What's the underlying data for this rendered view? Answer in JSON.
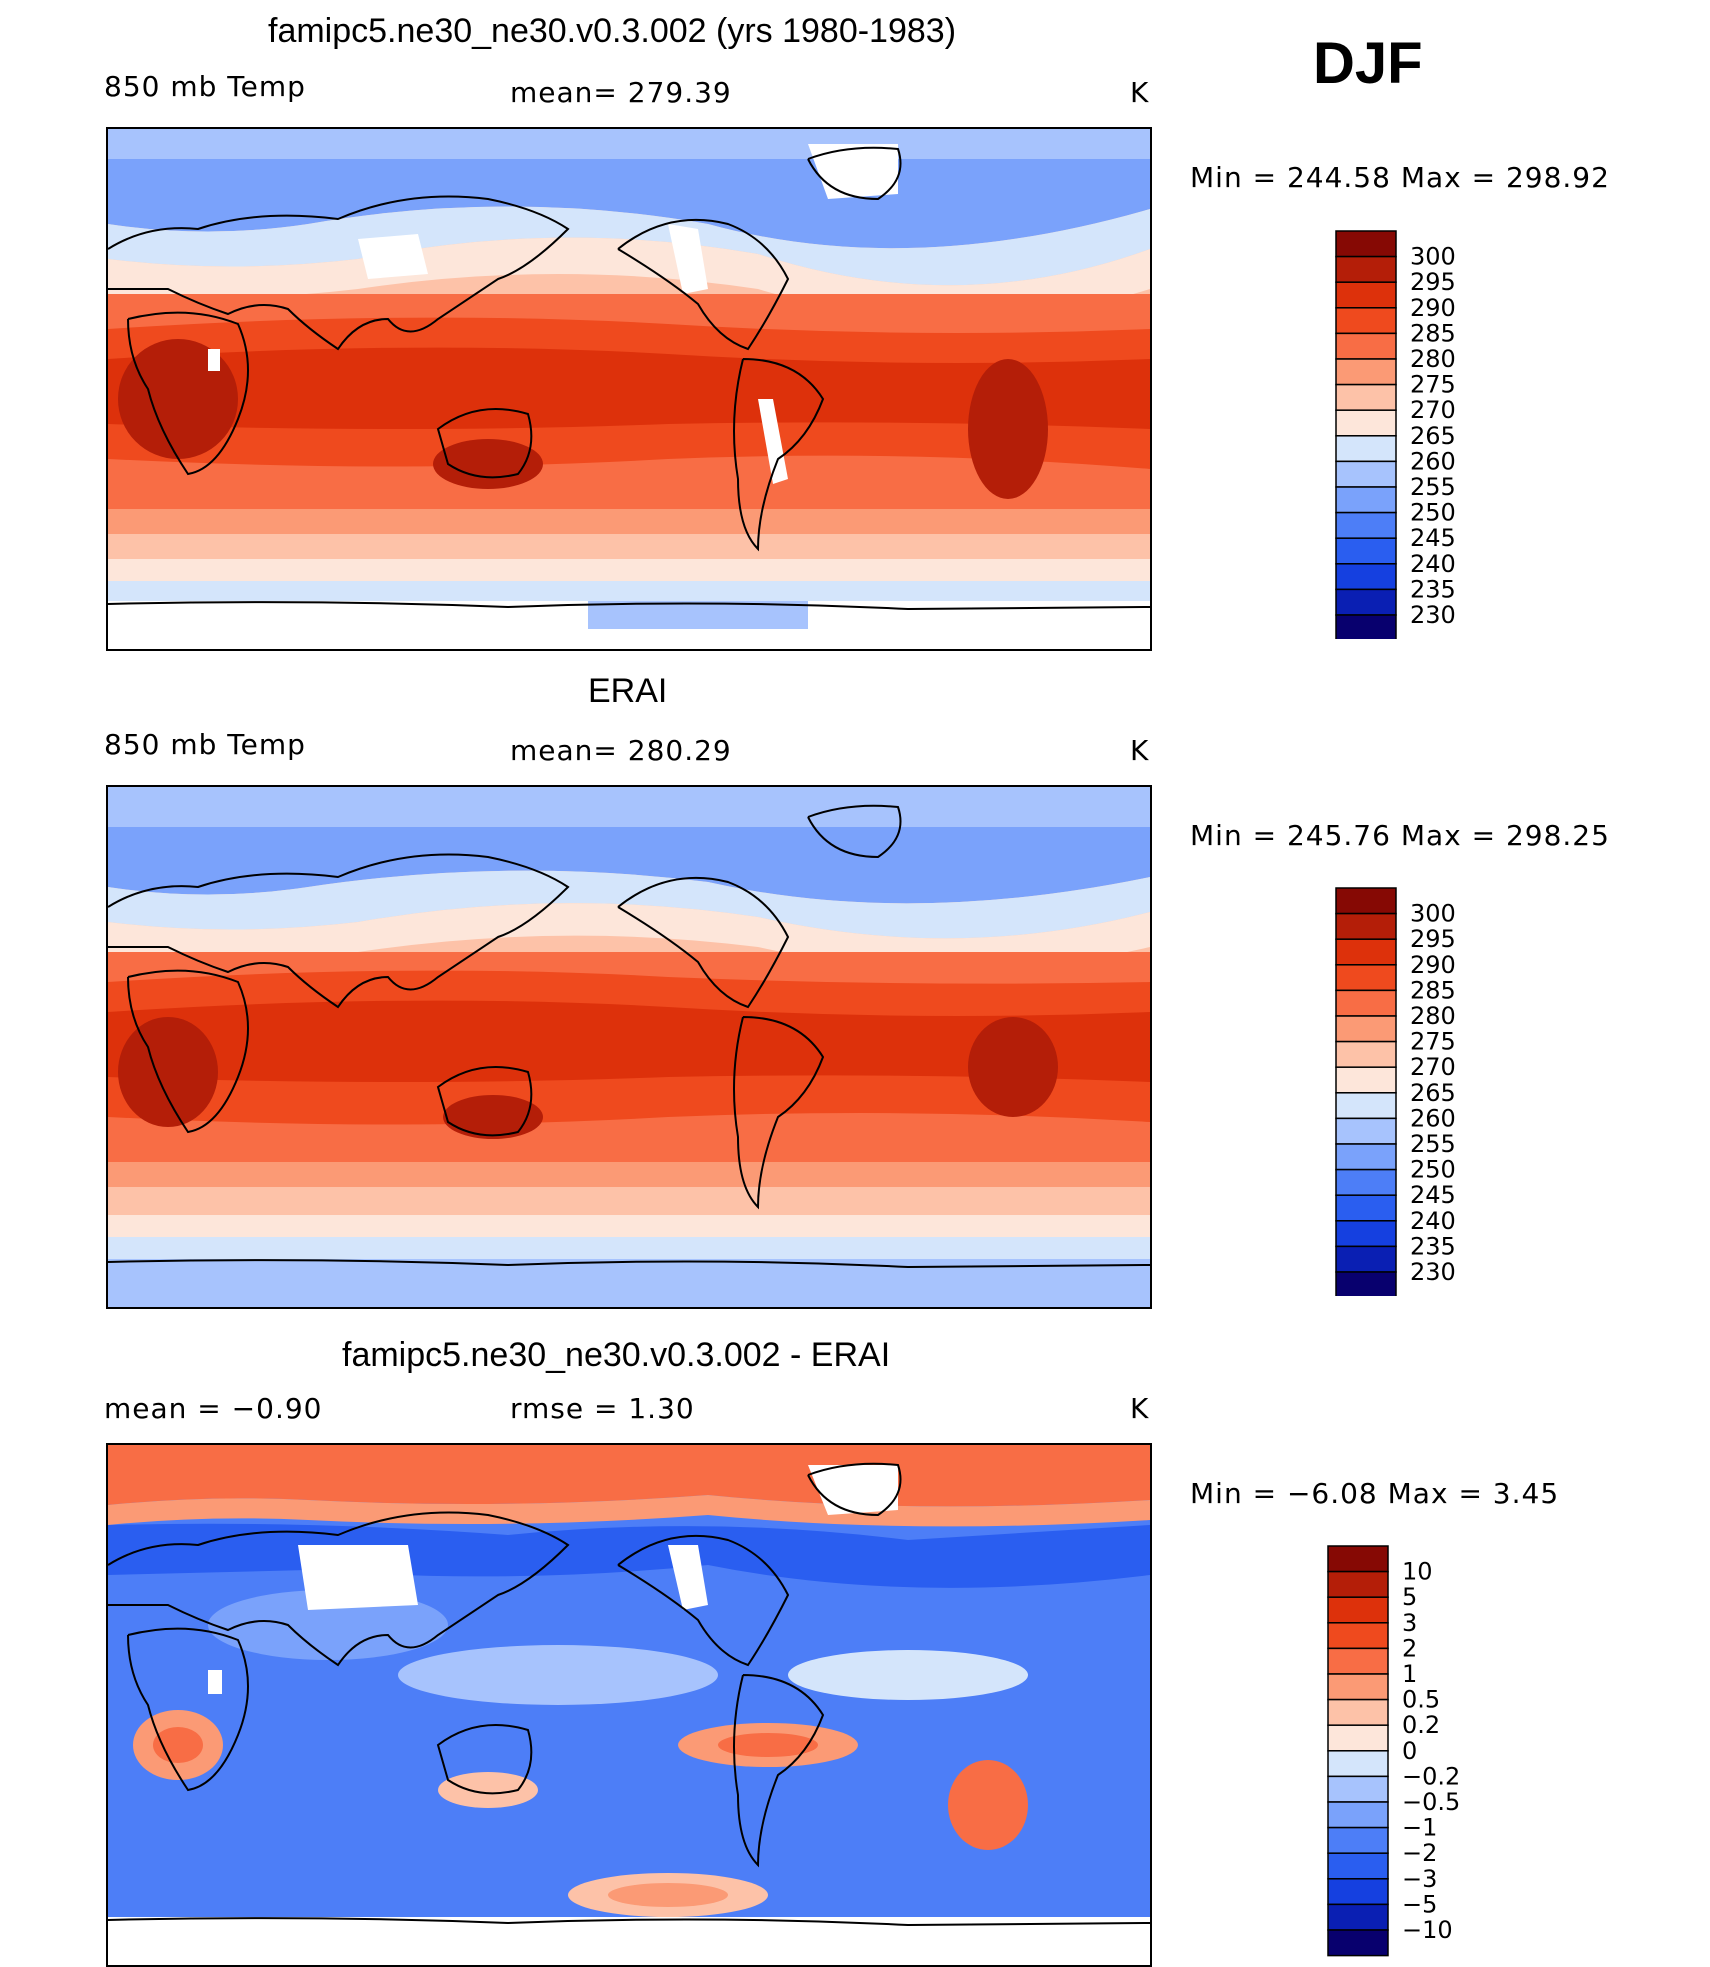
{
  "season": "DJF",
  "colors": {
    "temp_scale": [
      "#08006e",
      "#0a1fb3",
      "#1540e0",
      "#2a5ef0",
      "#4d7ef7",
      "#7aa2fb",
      "#a7c3fd",
      "#d4e5fb",
      "#fde6da",
      "#fdc2a8",
      "#fb9a75",
      "#f86d45",
      "#ef4a1e",
      "#dd310b",
      "#b41e08",
      "#860904"
    ],
    "diff_scale": [
      "#08006e",
      "#0a1fb3",
      "#1540e0",
      "#2a5ef0",
      "#4d7ef7",
      "#7aa2fb",
      "#a7c3fd",
      "#d4e5fb",
      "#fde6da",
      "#fdc2a8",
      "#fb9a75",
      "#f86d45",
      "#ef4a1e",
      "#dd310b",
      "#b41e08",
      "#860904"
    ]
  },
  "panels": [
    {
      "title": "famipc5.ne30_ne30.v0.3.002 (yrs 1980-1983)",
      "left": "850  mb  Temp",
      "center": "mean=  279.39",
      "right": "K",
      "minmax": "Min  =  244.58  Max  =  298.92",
      "legend_labels": [
        "300",
        "295",
        "290",
        "285",
        "280",
        "275",
        "270",
        "265",
        "260",
        "255",
        "250",
        "245",
        "240",
        "235",
        "230"
      ]
    },
    {
      "title": "ERAI",
      "left": "850  mb  Temp",
      "center": "mean=  280.29",
      "right": "K",
      "minmax": "Min  =  245.76  Max  =  298.25",
      "legend_labels": [
        "300",
        "295",
        "290",
        "285",
        "280",
        "275",
        "270",
        "265",
        "260",
        "255",
        "250",
        "245",
        "240",
        "235",
        "230"
      ]
    },
    {
      "title": "famipc5.ne30_ne30.v0.3.002 - ERAI",
      "left": "mean  =    −0.90",
      "center": "rmse  =     1.30",
      "right": "K",
      "minmax": "Min  =    −6.08  Max  =     3.45",
      "legend_labels": [
        "10",
        "5",
        "3",
        "2",
        "1",
        "0.5",
        "0.2",
        "0",
        "−0.2",
        "−0.5",
        "−1",
        "−2",
        "−3",
        "−5",
        "−10"
      ]
    }
  ],
  "chart_data": [
    {
      "type": "heatmap",
      "title": "famipc5.ne30_ne30.v0.3.002 (yrs 1980-1983)",
      "variable": "850 mb Temp",
      "units": "K",
      "mean": 279.39,
      "min": 244.58,
      "max": 298.92,
      "contour_levels": [
        230,
        235,
        240,
        245,
        250,
        255,
        260,
        265,
        270,
        275,
        280,
        285,
        290,
        295,
        300
      ]
    },
    {
      "type": "heatmap",
      "title": "ERAI",
      "variable": "850 mb Temp",
      "units": "K",
      "mean": 280.29,
      "min": 245.76,
      "max": 298.25,
      "contour_levels": [
        230,
        235,
        240,
        245,
        250,
        255,
        260,
        265,
        270,
        275,
        280,
        285,
        290,
        295,
        300
      ]
    },
    {
      "type": "heatmap",
      "title": "famipc5.ne30_ne30.v0.3.002 - ERAI",
      "units": "K",
      "mean": -0.9,
      "rmse": 1.3,
      "min": -6.08,
      "max": 3.45,
      "contour_levels": [
        -10,
        -5,
        -3,
        -2,
        -1,
        -0.5,
        -0.2,
        0,
        0.2,
        0.5,
        1,
        2,
        3,
        5,
        10
      ]
    }
  ]
}
